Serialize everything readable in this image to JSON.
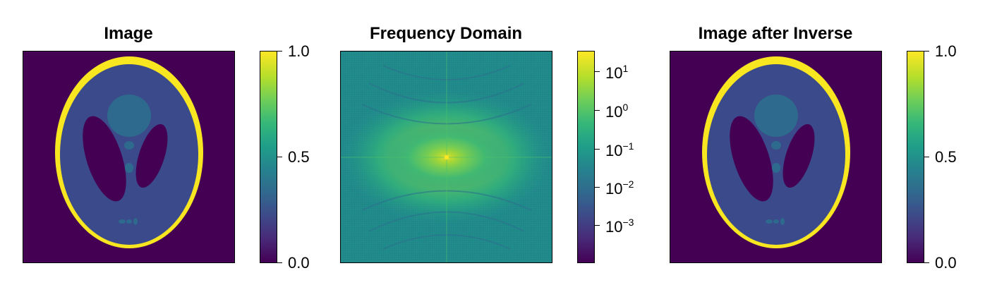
{
  "chart_data": [
    {
      "type": "heatmap",
      "title": "Image",
      "colormap": "viridis",
      "colorbar": {
        "scale": "linear",
        "range": [
          0.0,
          1.0
        ],
        "ticks": [
          "0.0",
          "0.5",
          "1.0"
        ]
      }
    },
    {
      "type": "heatmap",
      "title": "Frequency Domain",
      "colormap": "viridis",
      "colorbar": {
        "scale": "log",
        "range": [
          0.00015,
          30
        ],
        "ticks": [
          {
            "base": "10",
            "exp": "−3"
          },
          {
            "base": "10",
            "exp": "−2"
          },
          {
            "base": "10",
            "exp": "−1"
          },
          {
            "base": "10",
            "exp": "0"
          },
          {
            "base": "10",
            "exp": "1"
          }
        ]
      }
    },
    {
      "type": "heatmap",
      "title": "Image after Inverse",
      "colormap": "viridis",
      "colorbar": {
        "scale": "linear",
        "range": [
          0.0,
          1.0
        ],
        "ticks": [
          "0.0",
          "0.5",
          "1.0"
        ]
      }
    }
  ],
  "colors": {
    "low": "#440154",
    "mid": "#21918c",
    "high": "#fde725",
    "body": "#3b4a8a",
    "inner": "#2f5d8e"
  }
}
